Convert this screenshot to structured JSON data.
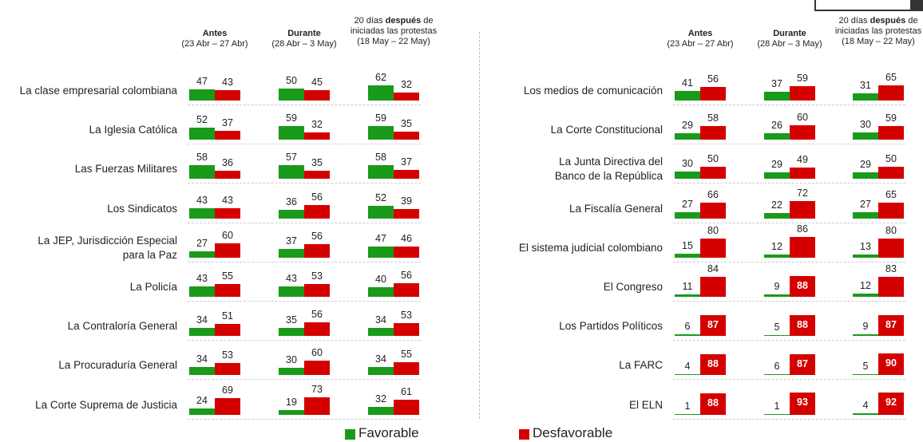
{
  "periods": [
    {
      "bold": "Antes",
      "dates": "(23 Abr – 27 Abr)"
    },
    {
      "bold": "Durante",
      "dates": "(28 Abr – 3 May)"
    },
    {
      "pre": "20 días ",
      "bold": "después",
      "post": " de",
      "line2": "iniciadas las protestas",
      "dates": "(18 May – 22 May)"
    }
  ],
  "legend": {
    "favorable": {
      "label": "Favorable",
      "color": "#1a9a1a"
    },
    "unfavorable": {
      "label": "Desfavorable",
      "color": "#d40000"
    }
  },
  "panels": [
    {
      "rows": [
        {
          "label": [
            "La clase empresarial colombiana"
          ],
          "favorable": [
            47,
            50,
            62
          ],
          "unfavorable": [
            43,
            45,
            32
          ]
        },
        {
          "label": [
            "La Iglesia Católica"
          ],
          "favorable": [
            52,
            59,
            59
          ],
          "unfavorable": [
            37,
            32,
            35
          ]
        },
        {
          "label": [
            "Las Fuerzas Militares"
          ],
          "favorable": [
            58,
            57,
            58
          ],
          "unfavorable": [
            36,
            35,
            37
          ]
        },
        {
          "label": [
            "Los Sindicatos"
          ],
          "favorable": [
            43,
            36,
            52
          ],
          "unfavorable": [
            43,
            56,
            39
          ]
        },
        {
          "label": [
            "La JEP, Jurisdicción Especial",
            "para la Paz"
          ],
          "favorable": [
            27,
            37,
            47
          ],
          "unfavorable": [
            60,
            56,
            46
          ]
        },
        {
          "label": [
            "La Policía"
          ],
          "favorable": [
            43,
            43,
            40
          ],
          "unfavorable": [
            55,
            53,
            56
          ]
        },
        {
          "label": [
            "La Contraloría General"
          ],
          "favorable": [
            34,
            35,
            34
          ],
          "unfavorable": [
            51,
            56,
            53
          ]
        },
        {
          "label": [
            "La Procuraduría General"
          ],
          "favorable": [
            34,
            30,
            34
          ],
          "unfavorable": [
            53,
            60,
            55
          ]
        },
        {
          "label": [
            "La Corte Suprema de Justicia"
          ],
          "favorable": [
            24,
            19,
            32
          ],
          "unfavorable": [
            69,
            73,
            61
          ]
        }
      ]
    },
    {
      "rows": [
        {
          "label": [
            "Los medios de comunicación"
          ],
          "favorable": [
            41,
            37,
            31
          ],
          "unfavorable": [
            56,
            59,
            65
          ]
        },
        {
          "label": [
            "La Corte Constitucional"
          ],
          "favorable": [
            29,
            26,
            30
          ],
          "unfavorable": [
            58,
            60,
            59
          ]
        },
        {
          "label": [
            "La Junta Directiva del",
            "Banco de la República"
          ],
          "favorable": [
            30,
            29,
            29
          ],
          "unfavorable": [
            50,
            49,
            50
          ]
        },
        {
          "label": [
            "La Fiscalía General"
          ],
          "favorable": [
            27,
            22,
            27
          ],
          "unfavorable": [
            66,
            72,
            65
          ]
        },
        {
          "label": [
            "El sistema judicial colombiano"
          ],
          "favorable": [
            15,
            12,
            13
          ],
          "unfavorable": [
            80,
            86,
            80
          ]
        },
        {
          "label": [
            "El Congreso"
          ],
          "favorable": [
            11,
            9,
            12
          ],
          "unfavorable": [
            84,
            88,
            83
          ]
        },
        {
          "label": [
            "Los Partidos Políticos"
          ],
          "favorable": [
            6,
            5,
            9
          ],
          "unfavorable": [
            87,
            88,
            87
          ]
        },
        {
          "label": [
            "La FARC"
          ],
          "favorable": [
            4,
            6,
            5
          ],
          "unfavorable": [
            88,
            87,
            90
          ]
        },
        {
          "label": [
            "El ELN"
          ],
          "favorable": [
            1,
            1,
            4
          ],
          "unfavorable": [
            88,
            93,
            92
          ]
        }
      ]
    }
  ]
}
